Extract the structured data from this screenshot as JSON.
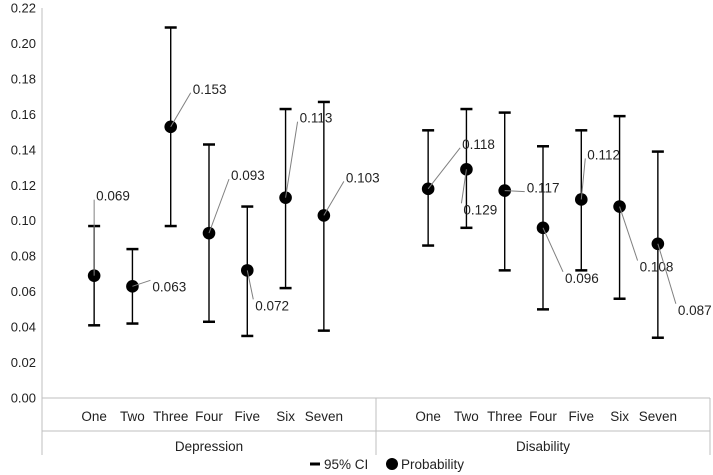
{
  "chart_data": {
    "type": "scatter",
    "title": "",
    "xlabel": "",
    "ylabel": "",
    "ylim": [
      0,
      0.22
    ],
    "yticks": [
      "0.00",
      "0.02",
      "0.04",
      "0.06",
      "0.08",
      "0.10",
      "0.12",
      "0.14",
      "0.16",
      "0.18",
      "0.20",
      "0.22"
    ],
    "grid": false,
    "groups": [
      {
        "name": "Depression",
        "categories": [
          "One",
          "Two",
          "Three",
          "Four",
          "Five",
          "Six",
          "Seven"
        ],
        "probability": [
          0.069,
          0.063,
          0.153,
          0.093,
          0.072,
          0.113,
          0.103
        ],
        "probability_labels": [
          "0.069",
          "0.063",
          "0.153",
          "0.093",
          "0.072",
          "0.113",
          "0.103"
        ],
        "ci_lower": [
          0.041,
          0.042,
          0.097,
          0.043,
          0.035,
          0.062,
          0.038
        ],
        "ci_upper": [
          0.097,
          0.084,
          0.209,
          0.143,
          0.108,
          0.163,
          0.167
        ]
      },
      {
        "name": "Disability",
        "categories": [
          "One",
          "Two",
          "Three",
          "Four",
          "Five",
          "Six",
          "Seven"
        ],
        "probability": [
          0.118,
          0.129,
          0.117,
          0.096,
          0.112,
          0.108,
          0.087
        ],
        "probability_labels": [
          "0.118",
          "0.129",
          "0.117",
          "0.096",
          "0.112",
          "0.108",
          "0.087"
        ],
        "ci_lower": [
          0.086,
          0.096,
          0.072,
          0.05,
          0.072,
          0.056,
          0.034
        ],
        "ci_upper": [
          0.151,
          0.163,
          0.161,
          0.142,
          0.151,
          0.159,
          0.139
        ]
      }
    ],
    "legend": {
      "position": "bottom",
      "items": [
        {
          "label": "95% CI",
          "marker": "dash"
        },
        {
          "label": "Probability",
          "marker": "circle"
        }
      ]
    },
    "colors": {
      "marker": "#000000",
      "leader": "#808080",
      "axis": "#bfbfbf",
      "text": "#222222"
    }
  }
}
